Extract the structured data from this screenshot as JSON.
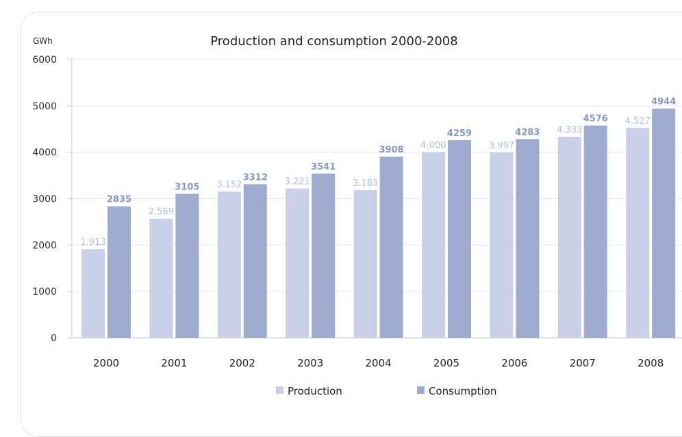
{
  "chart_data": {
    "type": "bar",
    "title": "Production and consumption 2000-2008",
    "ylabel": "GWh",
    "xlabel": "",
    "ylim": [
      0,
      6000
    ],
    "yticks": [
      "0",
      "1000",
      "2000",
      "3000",
      "4000",
      "5000",
      "6000"
    ],
    "categories": [
      "2000",
      "2001",
      "2002",
      "2003",
      "2004",
      "2005",
      "2006",
      "2007",
      "2008"
    ],
    "series": [
      {
        "name": "Production",
        "color": "#c9cfe6",
        "values": [
          1913,
          2569,
          3152,
          3221,
          3183,
          4000,
          3997,
          4333,
          4527
        ],
        "labels": [
          "1.913",
          "2.569",
          "3.152",
          "3.221",
          "3.183",
          "4.000",
          "3.997",
          "4.333",
          "4.527"
        ]
      },
      {
        "name": "Consumption",
        "color": "#9dabcf",
        "values": [
          2835,
          3105,
          3312,
          3541,
          3908,
          4259,
          4283,
          4576,
          4944
        ],
        "labels": [
          "2835",
          "3105",
          "3312",
          "3541",
          "3908",
          "4259",
          "4283",
          "4576",
          "4944"
        ]
      }
    ],
    "grid": true,
    "legend_position": "bottom"
  }
}
